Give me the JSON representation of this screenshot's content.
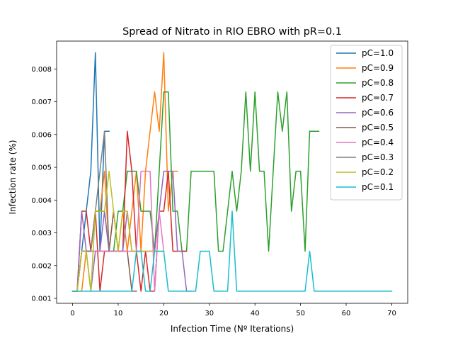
{
  "chart_data": {
    "type": "line",
    "title": "Spread of Nitrato in RIO EBRO with pR=0.1",
    "xlabel": "Infection Time (Nº Iterations)",
    "ylabel": "Infection rate (%)",
    "xlim": [
      -3.5,
      73.5
    ],
    "ylim": [
      0.00085,
      0.00885
    ],
    "xticks": [
      0,
      10,
      20,
      30,
      40,
      50,
      60,
      70
    ],
    "yticks": [
      0.001,
      0.002,
      0.003,
      0.004,
      0.005,
      0.006,
      0.007,
      0.008
    ],
    "xtick_labels": [
      "0",
      "10",
      "20",
      "30",
      "40",
      "50",
      "60",
      "70"
    ],
    "ytick_labels": [
      "0.001",
      "0.002",
      "0.003",
      "0.004",
      "0.005",
      "0.006",
      "0.007",
      "0.008"
    ],
    "grid": false,
    "legend": "top-right",
    "series": [
      {
        "name": "pC=1.0",
        "color": "#1f77b4",
        "x": [
          0,
          1,
          2,
          3,
          4,
          5,
          6,
          7,
          8
        ],
        "y": [
          0.00122,
          0.00122,
          0.00244,
          0.00366,
          0.00488,
          0.0085,
          0.00244,
          0.0061,
          0.0061
        ]
      },
      {
        "name": "pC=0.9",
        "color": "#ff7f0e",
        "x": [
          0,
          1,
          2,
          3,
          4,
          5,
          6,
          7,
          8,
          9,
          10,
          11,
          12,
          13,
          14,
          15,
          16,
          17,
          18,
          19,
          20,
          21,
          22,
          23
        ],
        "y": [
          0.00122,
          0.00122,
          0.00122,
          0.00244,
          0.00244,
          0.00366,
          0.00366,
          0.00488,
          0.00244,
          0.00366,
          0.00244,
          0.00366,
          0.00244,
          0.00366,
          0.00488,
          0.00244,
          0.00488,
          0.0061,
          0.0073,
          0.0061,
          0.0085,
          0.00366,
          0.00488,
          0.00488
        ]
      },
      {
        "name": "pC=0.8",
        "color": "#2ca02c",
        "x": [
          0,
          1,
          2,
          3,
          4,
          5,
          6,
          7,
          8,
          9,
          10,
          11,
          12,
          13,
          14,
          15,
          16,
          17,
          18,
          19,
          20,
          21,
          22,
          23,
          24,
          25,
          26,
          27,
          28,
          29,
          30,
          31,
          32,
          33,
          34,
          35,
          36,
          37,
          38,
          39,
          40,
          41,
          42,
          43,
          44,
          45,
          46,
          47,
          48,
          49,
          50,
          51,
          52,
          53,
          54
        ],
        "y": [
          0.00122,
          0.00122,
          0.00244,
          0.00244,
          0.00244,
          0.00366,
          0.00366,
          0.00366,
          0.00244,
          0.00244,
          0.00366,
          0.00366,
          0.00488,
          0.00488,
          0.00488,
          0.00366,
          0.00366,
          0.00366,
          0.00244,
          0.00488,
          0.0073,
          0.0073,
          0.00366,
          0.00366,
          0.00244,
          0.00244,
          0.00488,
          0.00488,
          0.00488,
          0.00488,
          0.00488,
          0.00488,
          0.00244,
          0.00244,
          0.00366,
          0.00488,
          0.00366,
          0.00488,
          0.0073,
          0.00488,
          0.0073,
          0.00488,
          0.00488,
          0.00244,
          0.00488,
          0.0073,
          0.0061,
          0.0073,
          0.00366,
          0.00488,
          0.00488,
          0.00244,
          0.0061,
          0.0061,
          0.0061
        ]
      },
      {
        "name": "pC=0.7",
        "color": "#d62728",
        "x": [
          0,
          1,
          2,
          3,
          4,
          5,
          6,
          7,
          8,
          9,
          10,
          11,
          12,
          13,
          14,
          15,
          16,
          17,
          18,
          19,
          20,
          21,
          22,
          23,
          24,
          25
        ],
        "y": [
          0.00122,
          0.00122,
          0.00366,
          0.00366,
          0.00244,
          0.00366,
          0.00122,
          0.00244,
          0.00244,
          0.00244,
          0.00244,
          0.00244,
          0.0061,
          0.00488,
          0.00244,
          0.00122,
          0.00244,
          0.00122,
          0.00122,
          0.00366,
          0.00366,
          0.00488,
          0.00244,
          0.00244,
          0.00244,
          0.00244
        ]
      },
      {
        "name": "pC=0.6",
        "color": "#9467bd",
        "x": [
          0,
          1,
          2,
          3,
          4,
          5,
          6,
          7,
          8,
          9,
          10,
          11,
          12,
          13,
          14,
          15,
          16,
          17,
          18,
          19,
          20,
          21,
          22,
          23,
          24,
          25,
          26
        ],
        "y": [
          0.00122,
          0.00122,
          0.00366,
          0.00244,
          0.00122,
          0.00244,
          0.00244,
          0.00366,
          0.00244,
          0.00244,
          0.00244,
          0.00244,
          0.00366,
          0.00244,
          0.00244,
          0.00244,
          0.00244,
          0.00244,
          0.00244,
          0.00366,
          0.00488,
          0.00488,
          0.00488,
          0.00244,
          0.00244,
          0.00122,
          0.00122
        ]
      },
      {
        "name": "pC=0.5",
        "color": "#8c564b",
        "x": [
          0,
          1,
          2,
          3,
          4,
          5,
          6,
          7,
          8,
          9,
          10,
          11,
          12,
          13,
          14
        ],
        "y": [
          0.00122,
          0.00122,
          0.00244,
          0.00244,
          0.00244,
          0.00244,
          0.00244,
          0.00244,
          0.00244,
          0.00366,
          0.00244,
          0.00244,
          0.00244,
          0.00122,
          0.00122
        ]
      },
      {
        "name": "pC=0.4",
        "color": "#e377c2",
        "x": [
          0,
          1,
          2,
          3,
          4,
          5,
          6,
          7,
          8,
          9,
          10,
          11,
          12,
          13,
          14,
          15,
          16,
          17,
          18,
          19,
          20
        ],
        "y": [
          0.00122,
          0.00122,
          0.00244,
          0.00244,
          0.00244,
          0.00244,
          0.00244,
          0.00244,
          0.00244,
          0.00244,
          0.00244,
          0.00244,
          0.00244,
          0.00244,
          0.00244,
          0.00488,
          0.00488,
          0.00488,
          0.00122,
          0.00366,
          0.00244
        ]
      },
      {
        "name": "pC=0.3",
        "color": "#7f7f7f",
        "x": [
          0,
          1,
          2,
          3,
          4,
          5,
          6,
          7,
          8
        ],
        "y": [
          0.00122,
          0.00122,
          0.00244,
          0.00244,
          0.00244,
          0.00366,
          0.00488,
          0.0061,
          0.00244
        ]
      },
      {
        "name": "pC=0.2",
        "color": "#bcbd22",
        "x": [
          0,
          1,
          2,
          3,
          4,
          5,
          6,
          7,
          8,
          9,
          10,
          11,
          12,
          13,
          14,
          15,
          16,
          17,
          18,
          19,
          20
        ],
        "y": [
          0.00122,
          0.00122,
          0.00244,
          0.00244,
          0.00122,
          0.00366,
          0.00366,
          0.00366,
          0.00488,
          0.00366,
          0.00244,
          0.00366,
          0.00366,
          0.00244,
          0.00244,
          0.00244,
          0.00244,
          0.00244,
          0.00244,
          0.00244,
          0.00244
        ]
      },
      {
        "name": "pC=0.1",
        "color": "#17becf",
        "x": [
          0,
          1,
          2,
          3,
          4,
          5,
          6,
          7,
          8,
          9,
          10,
          11,
          12,
          13,
          14,
          15,
          16,
          17,
          18,
          19,
          20,
          21,
          22,
          23,
          24,
          25,
          26,
          27,
          28,
          29,
          30,
          31,
          32,
          33,
          34,
          35,
          36,
          37,
          38,
          39,
          40,
          41,
          42,
          43,
          44,
          45,
          46,
          47,
          48,
          49,
          50,
          51,
          52,
          53,
          54,
          55,
          56,
          57,
          58,
          59,
          60,
          61,
          62,
          63,
          64,
          65,
          66,
          67,
          68,
          69,
          70
        ],
        "y": [
          0.00122,
          0.00122,
          0.00122,
          0.00122,
          0.00122,
          0.00122,
          0.00122,
          0.00122,
          0.00122,
          0.00122,
          0.00122,
          0.00122,
          0.00122,
          0.00122,
          0.00244,
          0.00244,
          0.00122,
          0.00122,
          0.00244,
          0.00244,
          0.00244,
          0.00122,
          0.00122,
          0.00122,
          0.00122,
          0.00122,
          0.00122,
          0.00122,
          0.00244,
          0.00244,
          0.00244,
          0.00122,
          0.00122,
          0.00122,
          0.00122,
          0.00366,
          0.00122,
          0.00122,
          0.00122,
          0.00122,
          0.00122,
          0.00122,
          0.00122,
          0.00122,
          0.00122,
          0.00122,
          0.00122,
          0.00122,
          0.00122,
          0.00122,
          0.00122,
          0.00122,
          0.00244,
          0.00122,
          0.00122,
          0.00122,
          0.00122,
          0.00122,
          0.00122,
          0.00122,
          0.00122,
          0.00122,
          0.00122,
          0.00122,
          0.00122,
          0.00122,
          0.00122,
          0.00122,
          0.00122,
          0.00122,
          0.00122
        ]
      }
    ]
  }
}
